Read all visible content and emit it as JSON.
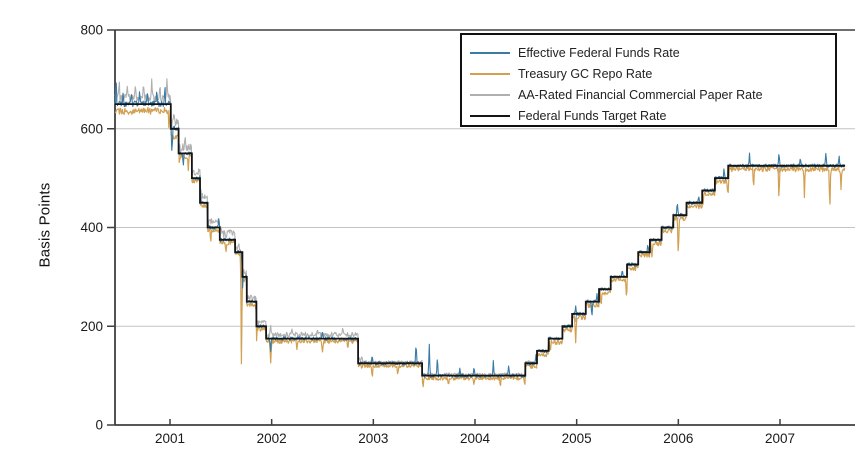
{
  "chart_data": {
    "type": "line",
    "title": "",
    "xlabel": "",
    "ylabel": "Basis Points",
    "ylim": [
      0,
      800
    ],
    "xlim": [
      2000.46,
      2007.74
    ],
    "x_range_data": [
      2000.46,
      2007.64
    ],
    "y_ticks": [
      0,
      200,
      400,
      600,
      800
    ],
    "x_ticks": [
      2001,
      2002,
      2003,
      2004,
      2005,
      2006,
      2007
    ],
    "grid_y": [
      200,
      400,
      600
    ],
    "grid_color": "#c4c4c4",
    "axis_color": "#3f3f3f",
    "legend_position": "top-inside",
    "series": [
      {
        "name": "effective",
        "label": "Effective Federal Funds Rate",
        "color": "#3a7ba6",
        "style": "daily-noise",
        "seed": 7,
        "width": 1.1,
        "eras": [
          [
            2000.46,
            2001.05,
            1,
            6
          ],
          [
            2001.05,
            2002.9,
            0,
            3.5
          ],
          [
            2002.9,
            2004.55,
            0,
            3.5
          ],
          [
            2004.55,
            2007.64,
            0,
            3.5
          ]
        ],
        "spikes": [
          [
            2000.47,
            48
          ],
          [
            2000.54,
            30
          ],
          [
            2000.62,
            22
          ],
          [
            2000.7,
            26
          ],
          [
            2000.78,
            24
          ],
          [
            2000.87,
            30
          ],
          [
            2000.95,
            36
          ],
          [
            2001.02,
            -62
          ],
          [
            2001.13,
            -28
          ],
          [
            2001.3,
            15
          ],
          [
            2001.48,
            18
          ],
          [
            2001.71,
            -40
          ],
          [
            2001.99,
            -25
          ],
          [
            2002.5,
            12
          ],
          [
            2002.99,
            18
          ],
          [
            2003.42,
            44
          ],
          [
            2003.55,
            62
          ],
          [
            2003.63,
            38
          ],
          [
            2003.85,
            15
          ],
          [
            2003.99,
            16
          ],
          [
            2004.18,
            28
          ],
          [
            2004.33,
            22
          ],
          [
            2004.6,
            15
          ],
          [
            2004.99,
            18
          ],
          [
            2005.15,
            -35
          ],
          [
            2005.2,
            15
          ],
          [
            2005.45,
            18
          ],
          [
            2005.7,
            20
          ],
          [
            2005.99,
            30
          ],
          [
            2006.2,
            18
          ],
          [
            2006.45,
            20
          ],
          [
            2006.7,
            25
          ],
          [
            2006.99,
            26
          ],
          [
            2007.2,
            20
          ],
          [
            2007.45,
            28
          ],
          [
            2007.58,
            22
          ]
        ]
      },
      {
        "name": "repo",
        "label": "Treasury GC Repo Rate",
        "color": "#d3a051",
        "style": "daily-noise",
        "seed": 13,
        "width": 1.2,
        "eras": [
          [
            2000.46,
            2001.1,
            -14,
            7
          ],
          [
            2001.1,
            2002.9,
            -5,
            5
          ],
          [
            2002.9,
            2004.55,
            -5,
            4
          ],
          [
            2004.55,
            2007.64,
            -7,
            5
          ]
        ],
        "spikes": [
          [
            2000.99,
            -40
          ],
          [
            2001.18,
            -30
          ],
          [
            2001.4,
            -25
          ],
          [
            2001.55,
            -25
          ],
          [
            2001.703,
            -252
          ],
          [
            2001.85,
            -25
          ],
          [
            2001.99,
            -42
          ],
          [
            2002.25,
            -18
          ],
          [
            2002.5,
            -25
          ],
          [
            2002.75,
            -15
          ],
          [
            2002.99,
            -30
          ],
          [
            2003.24,
            -18
          ],
          [
            2003.49,
            -20
          ],
          [
            2003.74,
            -14
          ],
          [
            2003.99,
            -20
          ],
          [
            2004.25,
            -15
          ],
          [
            2004.49,
            -18
          ],
          [
            2004.74,
            -22
          ],
          [
            2004.99,
            -48
          ],
          [
            2005.24,
            -28
          ],
          [
            2005.49,
            -38
          ],
          [
            2005.74,
            -28
          ],
          [
            2006.0,
            -80
          ],
          [
            2006.24,
            -30
          ],
          [
            2006.49,
            -48
          ],
          [
            2006.74,
            -42
          ],
          [
            2006.99,
            -68
          ],
          [
            2007.24,
            -58
          ],
          [
            2007.49,
            -90
          ],
          [
            2007.6,
            -40
          ]
        ]
      },
      {
        "name": "cp",
        "label": "AA-Rated Financial Commercial Paper Rate",
        "color": "#b0b0b0",
        "style": "daily-noise",
        "seed": 29,
        "width": 1.1,
        "eras": [
          [
            2000.46,
            2001.75,
            12,
            8
          ],
          [
            2001.75,
            2002.9,
            8,
            5
          ],
          [
            2002.9,
            2004.55,
            2,
            3.5
          ],
          [
            2004.55,
            2007.64,
            0,
            3
          ]
        ],
        "spikes": [
          [
            2000.5,
            38
          ],
          [
            2000.58,
            26
          ],
          [
            2000.66,
            32
          ],
          [
            2000.74,
            28
          ],
          [
            2000.82,
            34
          ],
          [
            2000.9,
            28
          ],
          [
            2000.97,
            42
          ],
          [
            2001.04,
            26
          ],
          [
            2001.15,
            22
          ],
          [
            2001.3,
            18
          ],
          [
            2001.5,
            15
          ],
          [
            2001.703,
            -248
          ],
          [
            2001.99,
            18
          ],
          [
            2002.2,
            12
          ],
          [
            2002.45,
            14
          ],
          [
            2002.7,
            12
          ],
          [
            2002.99,
            10
          ],
          [
            2004.99,
            -18
          ],
          [
            2005.99,
            -14
          ],
          [
            2006.99,
            -16
          ]
        ]
      },
      {
        "name": "target",
        "label": "Federal Funds Target Rate",
        "color": "#151515",
        "style": "step",
        "width": 1.8,
        "steps": [
          [
            2000.46,
            650
          ],
          [
            2001.008,
            600
          ],
          [
            2001.085,
            550
          ],
          [
            2001.215,
            500
          ],
          [
            2001.295,
            450
          ],
          [
            2001.37,
            400
          ],
          [
            2001.49,
            375
          ],
          [
            2001.64,
            350
          ],
          [
            2001.712,
            300
          ],
          [
            2001.755,
            250
          ],
          [
            2001.85,
            200
          ],
          [
            2001.945,
            175
          ],
          [
            2002.85,
            125
          ],
          [
            2003.48,
            100
          ],
          [
            2004.495,
            125
          ],
          [
            2004.61,
            150
          ],
          [
            2004.725,
            175
          ],
          [
            2004.86,
            200
          ],
          [
            2004.955,
            225
          ],
          [
            2005.09,
            250
          ],
          [
            2005.22,
            275
          ],
          [
            2005.335,
            300
          ],
          [
            2005.495,
            325
          ],
          [
            2005.605,
            350
          ],
          [
            2005.72,
            375
          ],
          [
            2005.835,
            400
          ],
          [
            2005.95,
            425
          ],
          [
            2006.08,
            450
          ],
          [
            2006.235,
            475
          ],
          [
            2006.36,
            500
          ],
          [
            2006.49,
            525
          ]
        ]
      }
    ]
  }
}
